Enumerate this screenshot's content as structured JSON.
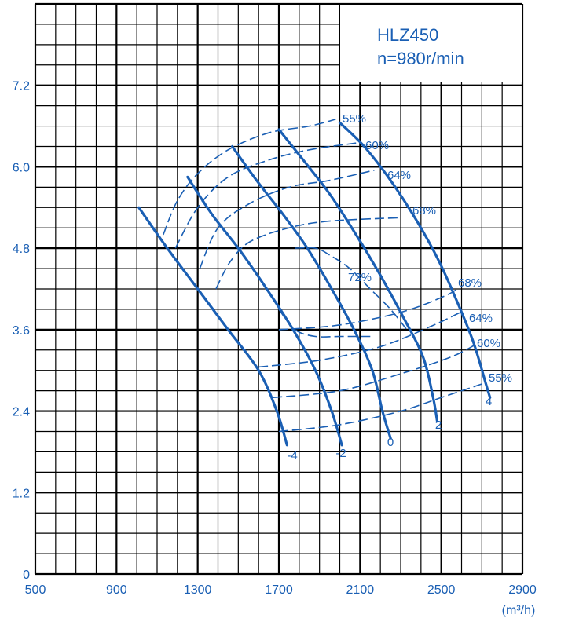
{
  "chart_data": {
    "type": "line",
    "title": "HLZ450",
    "subtitle": "n=980r/min",
    "xlabel": "",
    "ylabel": "",
    "x_unit_label": "(m³/h)",
    "xlim": [
      500,
      2900
    ],
    "ylim": [
      0,
      8.4
    ],
    "x_ticks": [
      "500",
      "900",
      "1300",
      "1700",
      "2100",
      "2500",
      "2900"
    ],
    "y_ticks": [
      "0",
      "1.2",
      "2.4",
      "3.6",
      "4.8",
      "6.0",
      "7.2"
    ],
    "grid": true,
    "curve_color": "#1a5fb4",
    "blade_angle_curves": [
      {
        "name": "-4",
        "points": [
          [
            1010,
            5.4
          ],
          [
            1150,
            4.8
          ],
          [
            1300,
            4.2
          ],
          [
            1450,
            3.6
          ],
          [
            1600,
            3.0
          ],
          [
            1690,
            2.4
          ],
          [
            1740,
            1.9
          ]
        ]
      },
      {
        "name": "-2",
        "points": [
          [
            1250,
            5.85
          ],
          [
            1370,
            5.3
          ],
          [
            1500,
            4.8
          ],
          [
            1640,
            4.2
          ],
          [
            1770,
            3.6
          ],
          [
            1880,
            3.0
          ],
          [
            1960,
            2.4
          ],
          [
            2010,
            1.9
          ]
        ]
      },
      {
        "name": "0",
        "points": [
          [
            1470,
            6.3
          ],
          [
            1590,
            5.8
          ],
          [
            1720,
            5.3
          ],
          [
            1840,
            4.8
          ],
          [
            1960,
            4.2
          ],
          [
            2070,
            3.6
          ],
          [
            2160,
            3.0
          ],
          [
            2210,
            2.4
          ],
          [
            2250,
            2.0
          ]
        ]
      },
      {
        "name": "2",
        "points": [
          [
            1700,
            6.55
          ],
          [
            1820,
            6.1
          ],
          [
            1950,
            5.6
          ],
          [
            2080,
            5.0
          ],
          [
            2200,
            4.4
          ],
          [
            2310,
            3.8
          ],
          [
            2410,
            3.2
          ],
          [
            2460,
            2.6
          ],
          [
            2480,
            2.25
          ]
        ]
      },
      {
        "name": "4",
        "points": [
          [
            2000,
            6.65
          ],
          [
            2120,
            6.3
          ],
          [
            2250,
            5.8
          ],
          [
            2380,
            5.2
          ],
          [
            2490,
            4.6
          ],
          [
            2580,
            4.0
          ],
          [
            2660,
            3.4
          ],
          [
            2720,
            2.8
          ],
          [
            2740,
            2.6
          ]
        ]
      }
    ],
    "efficiency_curves": [
      {
        "name": "55%",
        "label_left": "55%",
        "label_right": "55%",
        "points": [
          [
            1130,
            5.0
          ],
          [
            1200,
            5.5
          ],
          [
            1300,
            5.9
          ],
          [
            1450,
            6.25
          ],
          [
            1650,
            6.5
          ],
          [
            1850,
            6.6
          ],
          [
            1980,
            6.7
          ]
        ],
        "points_low": [
          [
            1700,
            2.1
          ],
          [
            2000,
            2.2
          ],
          [
            2300,
            2.4
          ],
          [
            2500,
            2.6
          ],
          [
            2700,
            2.8
          ]
        ]
      },
      {
        "name": "60%",
        "label_left": "60%",
        "label_right": "60%",
        "points": [
          [
            1190,
            4.8
          ],
          [
            1300,
            5.4
          ],
          [
            1450,
            5.85
          ],
          [
            1650,
            6.1
          ],
          [
            1850,
            6.25
          ],
          [
            2080,
            6.35
          ]
        ],
        "points_low": [
          [
            1670,
            2.6
          ],
          [
            2000,
            2.7
          ],
          [
            2300,
            2.95
          ],
          [
            2550,
            3.2
          ],
          [
            2680,
            3.4
          ]
        ]
      },
      {
        "name": "64%",
        "label_left": "64%",
        "label_right": "64%",
        "points": [
          [
            1310,
            4.5
          ],
          [
            1400,
            5.1
          ],
          [
            1550,
            5.45
          ],
          [
            1750,
            5.7
          ],
          [
            1950,
            5.8
          ],
          [
            2170,
            5.95
          ]
        ],
        "points_low": [
          [
            1600,
            3.05
          ],
          [
            1900,
            3.15
          ],
          [
            2200,
            3.35
          ],
          [
            2450,
            3.65
          ],
          [
            2590,
            3.85
          ]
        ]
      },
      {
        "name": "68%",
        "label_left": "68%",
        "label_right": "68%",
        "points": [
          [
            1390,
            4.2
          ],
          [
            1460,
            4.6
          ],
          [
            1560,
            4.9
          ],
          [
            1750,
            5.1
          ],
          [
            1950,
            5.2
          ],
          [
            2300,
            5.25
          ]
        ],
        "points_low": [
          [
            1700,
            3.6
          ],
          [
            1950,
            3.65
          ],
          [
            2150,
            3.75
          ],
          [
            2350,
            3.9
          ],
          [
            2520,
            4.1
          ],
          [
            2580,
            4.2
          ]
        ]
      },
      {
        "name": "72%",
        "label_left": "72%",
        "label_right": "",
        "points": [
          [
            1780,
            4.8
          ],
          [
            1880,
            4.8
          ],
          [
            1950,
            4.7
          ],
          [
            2050,
            4.5
          ],
          [
            2150,
            4.2
          ],
          [
            2250,
            3.9
          ],
          [
            2330,
            3.6
          ]
        ],
        "points_low": [
          [
            1700,
            3.9
          ],
          [
            1780,
            3.6
          ],
          [
            1880,
            3.5
          ],
          [
            2000,
            3.5
          ],
          [
            2150,
            3.5
          ]
        ]
      }
    ],
    "curve_labels": {
      "blade": [
        "-4",
        "-2",
        "0",
        "2",
        "4"
      ],
      "eff_upper": [
        "55%",
        "60%",
        "64%",
        "68%",
        "72%"
      ],
      "eff_lower": [
        "68%",
        "64%",
        "60%",
        "55%"
      ]
    }
  }
}
